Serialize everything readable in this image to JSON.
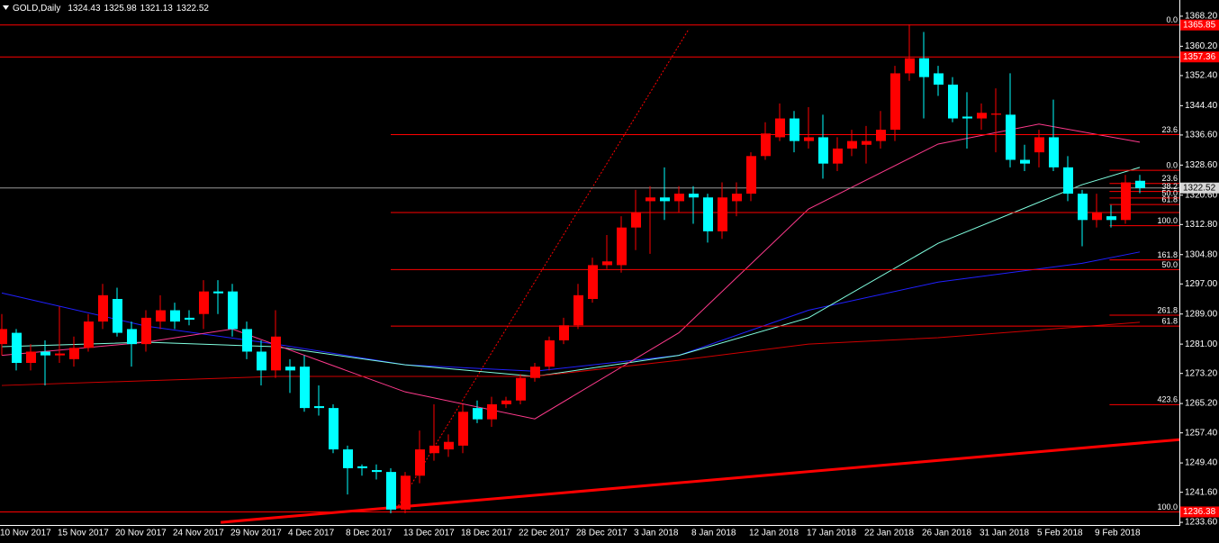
{
  "header": {
    "symbol": "GOLD,Daily"
  },
  "chart_data": {
    "type": "candlestick",
    "categories": [
      "10 Nov 2017",
      null,
      null,
      null,
      "15 Nov 2017",
      null,
      null,
      null,
      "20 Nov 2017",
      null,
      null,
      null,
      "24 Nov 2017",
      null,
      null,
      null,
      "29 Nov 2017",
      null,
      null,
      null,
      "4 Dec 2017",
      null,
      null,
      null,
      "8 Dec 2017",
      null,
      null,
      null,
      "13 Dec 2017",
      null,
      null,
      null,
      "18 Dec 2017",
      null,
      null,
      null,
      "22 Dec 2017",
      null,
      null,
      null,
      "28 Dec 2017",
      null,
      null,
      null,
      "3 Jan 2018",
      null,
      null,
      null,
      "8 Jan 2018",
      null,
      null,
      null,
      "12 Jan 2018",
      null,
      null,
      null,
      "17 Jan 2018",
      null,
      null,
      null,
      "22 Jan 2018",
      null,
      null,
      null,
      "26 Jan 2018",
      null,
      null,
      null,
      "31 Jan 2018",
      null,
      null,
      null,
      "5 Feb 2018",
      null,
      null,
      null,
      "9 Feb 2018",
      null,
      null,
      null
    ],
    "open": [
      1281,
      1284,
      1276,
      1279,
      1278,
      1277,
      1280,
      1287,
      1293,
      1285,
      1281,
      1287,
      1290,
      1288,
      1289,
      1295,
      1295,
      1285,
      1279,
      1274,
      1275,
      1275,
      1264.5,
      1264,
      1253,
      1248.5,
      1247.5,
      1247,
      1237,
      1246,
      1252,
      1253,
      1254,
      1264,
      1261,
      1265,
      1266,
      1272,
      1275,
      1282,
      1286,
      1293,
      1302,
      1302,
      1312,
      1319,
      1320,
      1319,
      1321,
      1320,
      1311,
      1319,
      1321,
      1331,
      1336,
      1341,
      1335,
      1336,
      1329,
      1333,
      1334,
      1335,
      1338,
      1353,
      1357,
      1353,
      1350,
      1341.5,
      1341,
      1342,
      1342,
      1330,
      1332,
      1336,
      1328,
      1321,
      1314,
      1315,
      1314,
      1324.43
    ],
    "high": [
      1289,
      1285,
      1281,
      1282,
      1291,
      1283,
      1289,
      1297,
      1296,
      1287,
      1290,
      1294,
      1292,
      1290,
      1298,
      1298,
      1297,
      1287,
      1282,
      1290,
      1277,
      1278,
      1270,
      1265,
      1254,
      1249,
      1249,
      1248,
      1247,
      1258,
      1265,
      1257,
      1265,
      1266,
      1267,
      1267,
      1273,
      1276,
      1283,
      1288,
      1297,
      1304,
      1310,
      1315,
      1322,
      1323,
      1328,
      1323,
      1323,
      1321,
      1324,
      1324,
      1332,
      1340,
      1345,
      1343,
      1344,
      1342,
      1336,
      1338,
      1339,
      1343,
      1355,
      1366,
      1364,
      1355,
      1352,
      1348,
      1345,
      1349,
      1353,
      1334,
      1338,
      1346,
      1331,
      1322,
      1321,
      1318,
      1326,
      1325.98
    ],
    "low": [
      1278,
      1274,
      1274,
      1270,
      1276,
      1275,
      1279,
      1285,
      1283,
      1275,
      1279,
      1285,
      1285,
      1286,
      1285,
      1289,
      1283,
      1277,
      1270,
      1272,
      1268,
      1263,
      1262,
      1252,
      1241,
      1246,
      1245,
      1236,
      1236,
      1244,
      1250,
      1251,
      1252,
      1260,
      1259,
      1264,
      1265,
      1271,
      1274,
      1281,
      1285,
      1292,
      1301,
      1300,
      1306,
      1305,
      1314,
      1316,
      1313,
      1308,
      1309,
      1315,
      1319,
      1330,
      1335,
      1332,
      1333,
      1325,
      1327,
      1331,
      1329,
      1333,
      1335,
      1351,
      1341,
      1347,
      1340,
      1333,
      1338,
      1332,
      1328,
      1327,
      1328,
      1327,
      1319,
      1307,
      1312,
      1312,
      1313,
      1321.13
    ],
    "close": [
      1285,
      1276,
      1279,
      1278,
      1278.5,
      1280,
      1287,
      1294,
      1284,
      1281,
      1288,
      1290,
      1287,
      1287.5,
      1295,
      1294.5,
      1285,
      1279,
      1274,
      1283,
      1274,
      1264,
      1264,
      1253,
      1248,
      1248,
      1247,
      1237,
      1246,
      1253,
      1254,
      1255,
      1263,
      1261,
      1265,
      1266,
      1272,
      1275,
      1282,
      1286,
      1294,
      1302,
      1303,
      1312,
      1316,
      1320,
      1319,
      1321,
      1320,
      1311,
      1320,
      1321,
      1331,
      1337,
      1341,
      1335,
      1336,
      1329,
      1333,
      1335,
      1335,
      1338,
      1353,
      1357,
      1352,
      1350,
      1341,
      1341,
      1342.5,
      1342.3,
      1330,
      1329,
      1336,
      1328,
      1321,
      1314,
      1316,
      1314,
      1324,
      1322.52
    ],
    "bull_color": "#ff0000",
    "bear_color": "#00ffff",
    "ylim": [
      1232.9,
      1372.5
    ],
    "yticks": [
      {
        "value": 1368.2,
        "label": "1368.20"
      },
      {
        "value": 1360.2,
        "label": "1360.20"
      },
      {
        "value": 1352.4,
        "label": "1352.40"
      },
      {
        "value": 1344.4,
        "label": "1344.40"
      },
      {
        "value": 1336.6,
        "label": "1336.60"
      },
      {
        "value": 1328.6,
        "label": "1328.60"
      },
      {
        "value": 1320.6,
        "label": "1320.60"
      },
      {
        "value": 1312.8,
        "label": "1312.80"
      },
      {
        "value": 1304.8,
        "label": "1304.80"
      },
      {
        "value": 1297,
        "label": "1297.00"
      },
      {
        "value": 1289,
        "label": "1289.00"
      },
      {
        "value": 1281,
        "label": "1281.00"
      },
      {
        "value": 1273.2,
        "label": "1273.20"
      },
      {
        "value": 1265.2,
        "label": "1265.20"
      },
      {
        "value": 1257.4,
        "label": "1257.40"
      },
      {
        "value": 1249.4,
        "label": "1249.40"
      },
      {
        "value": 1241.6,
        "label": "1241.60"
      },
      {
        "value": 1233.6,
        "label": "1233.60"
      }
    ],
    "lines": [
      {
        "color": "#2020ff",
        "x": [
          0,
          10,
          19,
          28,
          37,
          47,
          56,
          65,
          75,
          79
        ],
        "values": [
          1294.6,
          1285.8,
          1281,
          1275.5,
          1273.8,
          1278,
          1290,
          1297.5,
          1302.5,
          1305.5
        ]
      },
      {
        "color": "#80ffe0",
        "x": [
          0,
          10,
          19,
          28,
          37,
          47,
          56,
          65,
          75,
          79
        ],
        "values": [
          1280.3,
          1281.5,
          1280.3,
          1275.5,
          1272.4,
          1278,
          1288,
          1307.8,
          1323.4,
          1328
        ]
      },
      {
        "color": "#ff3a8c",
        "x": [
          0,
          10,
          16,
          28,
          37,
          47,
          56,
          65,
          72,
          79
        ],
        "values": [
          1278,
          1281.5,
          1285,
          1268.3,
          1261.1,
          1284,
          1316.9,
          1334.2,
          1339.5,
          1334.7
        ]
      },
      {
        "color": "#d00000",
        "x": [
          0,
          19,
          37,
          47,
          56,
          65,
          79
        ],
        "values": [
          1270,
          1272.4,
          1272.4,
          1276.7,
          1281,
          1282.7,
          1286.8
        ]
      }
    ],
    "trendlines": [
      {
        "color": "#ff0000",
        "style": "thick",
        "x": [
          15.2,
          81.75
        ],
        "values": [
          1233.6,
          1255.6
        ]
      },
      {
        "color": "#ff0000",
        "style": "dotted",
        "x": [
          27.4,
          47.7
        ],
        "values": [
          1237.2,
          1364.8
        ]
      }
    ],
    "level_color": "#ff0000",
    "levels": [
      {
        "value": 1365.85,
        "label": "0.0",
        "x": [
          -0.2,
          81.75
        ],
        "axis_tag": true
      },
      {
        "value": 1357.36,
        "x": [
          -0.2,
          81.75
        ],
        "axis_tag": true
      },
      {
        "value": 1336.7,
        "label": "23.6",
        "x": [
          27,
          81.75
        ]
      },
      {
        "value": 1316,
        "x": [
          27,
          81.75
        ]
      },
      {
        "value": 1300.8,
        "label": "50.0",
        "x": [
          27,
          81.75
        ]
      },
      {
        "value": 1285.8,
        "label": "61.8",
        "x": [
          27,
          81.75
        ]
      },
      {
        "value": 1236.38,
        "label": "100.0",
        "x": [
          -0.2,
          81.75
        ],
        "axis_tag": true
      },
      {
        "value": 1327.2,
        "label": "0.0",
        "x": [
          76.9,
          81.75
        ]
      },
      {
        "value": 1323.7,
        "label": "23.6",
        "x": [
          76.9,
          81.75
        ]
      },
      {
        "value": 1321.6,
        "label": "38.2",
        "x": [
          76.9,
          81.75
        ]
      },
      {
        "value": 1319.85,
        "label": "50.0",
        "x": [
          76.9,
          81.75
        ]
      },
      {
        "value": 1318.1,
        "label": "61.8",
        "x": [
          76.9,
          81.75
        ]
      },
      {
        "value": 1312.5,
        "label": "100.0",
        "x": [
          76.9,
          81.75
        ]
      },
      {
        "value": 1303.4,
        "label": "161.8",
        "x": [
          76.9,
          81.75
        ]
      },
      {
        "value": 1288.7,
        "label": "261.8",
        "x": [
          76.9,
          81.75
        ]
      },
      {
        "value": 1264.9,
        "label": "423.6",
        "x": [
          76.9,
          81.75
        ]
      }
    ]
  }
}
